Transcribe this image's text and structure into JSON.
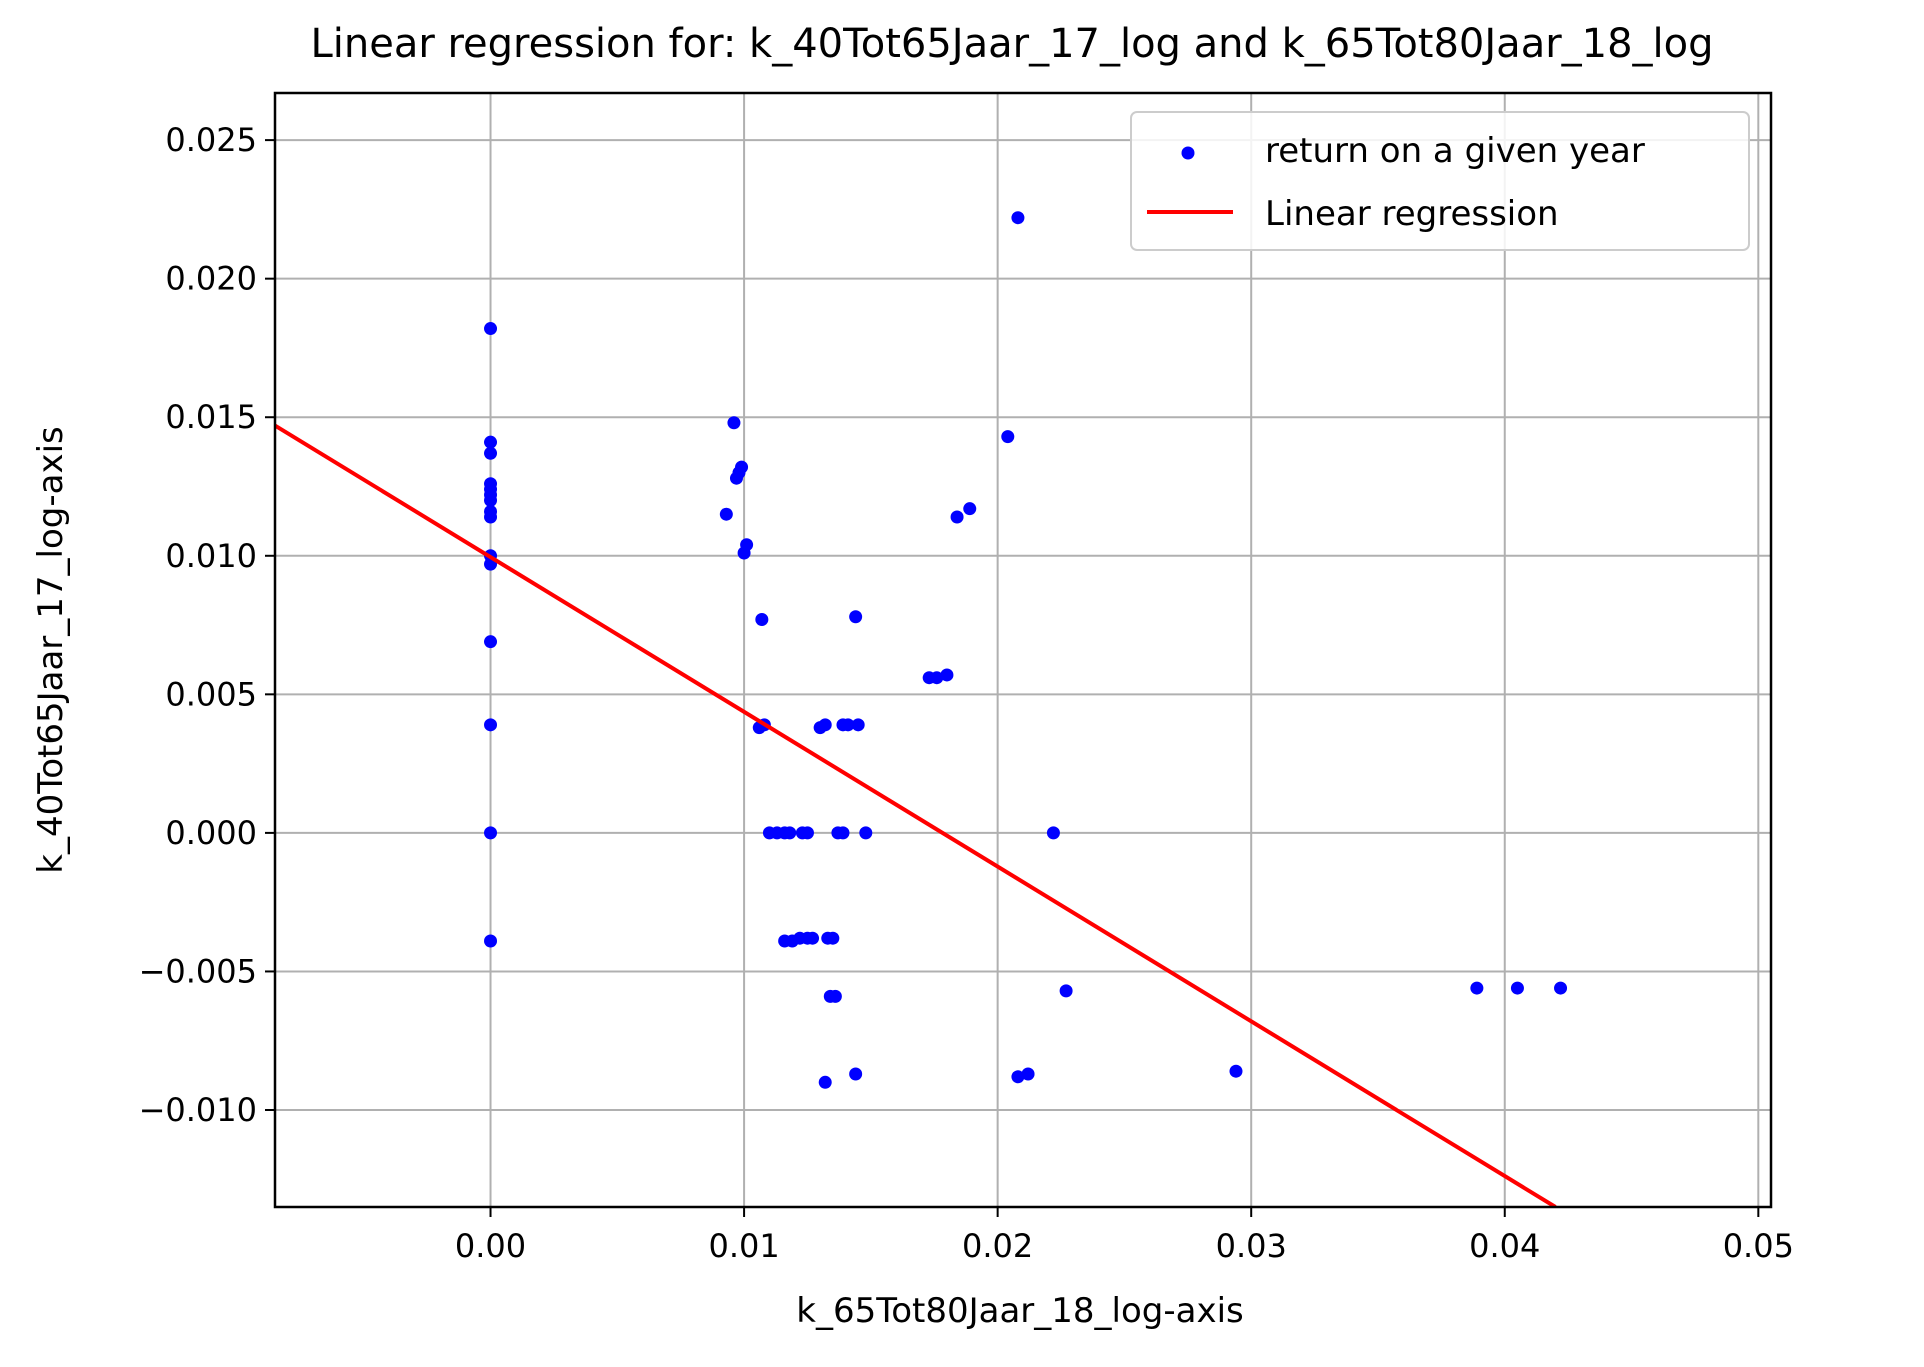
{
  "chart_data": {
    "type": "scatter",
    "title": "Linear regression for: k_40Tot65Jaar_17_log and k_65Tot80Jaar_18_log",
    "xlabel": "k_65Tot80Jaar_18_log-axis",
    "ylabel": "k_40Tot65Jaar_17_log-axis",
    "xlim": [
      -0.0085,
      0.0505
    ],
    "ylim": [
      -0.0135,
      0.0267
    ],
    "grid": true,
    "legend_position": "top-right",
    "x_ticks": [
      0.0,
      0.01,
      0.02,
      0.03,
      0.04,
      0.05
    ],
    "x_tick_labels": [
      "0.00",
      "0.01",
      "0.02",
      "0.03",
      "0.04",
      "0.05"
    ],
    "y_ticks": [
      -0.01,
      -0.005,
      0.0,
      0.005,
      0.01,
      0.015,
      0.02,
      0.025
    ],
    "y_tick_labels": [
      "−0.010",
      "−0.005",
      "0.000",
      "0.005",
      "0.010",
      "0.015",
      "0.020",
      "0.025"
    ],
    "legend": [
      "return on a given year",
      "Linear regression"
    ],
    "colors": {
      "points": "#0000ff",
      "regression": "#ff0000"
    },
    "series": [
      {
        "name": "return on a given year",
        "kind": "scatter",
        "points": [
          [
            0.0,
            0.0182
          ],
          [
            0.0,
            0.0141
          ],
          [
            0.0,
            0.0137
          ],
          [
            0.0,
            0.0126
          ],
          [
            0.0,
            0.0124
          ],
          [
            0.0,
            0.0122
          ],
          [
            0.0,
            0.012
          ],
          [
            0.0,
            0.0116
          ],
          [
            0.0,
            0.0114
          ],
          [
            0.0,
            0.01
          ],
          [
            0.0,
            0.0097
          ],
          [
            0.0,
            0.0069
          ],
          [
            0.0,
            0.0039
          ],
          [
            0.0,
            0.0
          ],
          [
            0.0,
            -0.0039
          ],
          [
            0.0096,
            0.0148
          ],
          [
            0.0097,
            0.0128
          ],
          [
            0.0098,
            0.013
          ],
          [
            0.0099,
            0.0132
          ],
          [
            0.0093,
            0.0115
          ],
          [
            0.01,
            0.0101
          ],
          [
            0.0101,
            0.0104
          ],
          [
            0.0107,
            0.0077
          ],
          [
            0.0144,
            0.0078
          ],
          [
            0.0106,
            0.0038
          ],
          [
            0.0108,
            0.0039
          ],
          [
            0.013,
            0.0038
          ],
          [
            0.0132,
            0.0039
          ],
          [
            0.0139,
            0.0039
          ],
          [
            0.0141,
            0.0039
          ],
          [
            0.0145,
            0.0039
          ],
          [
            0.011,
            0.0
          ],
          [
            0.0113,
            0.0
          ],
          [
            0.0116,
            0.0
          ],
          [
            0.0118,
            0.0
          ],
          [
            0.0123,
            0.0
          ],
          [
            0.0125,
            0.0
          ],
          [
            0.0137,
            0.0
          ],
          [
            0.0139,
            0.0
          ],
          [
            0.0148,
            0.0
          ],
          [
            0.0116,
            -0.0039
          ],
          [
            0.0119,
            -0.0039
          ],
          [
            0.0122,
            -0.0038
          ],
          [
            0.0125,
            -0.0038
          ],
          [
            0.0127,
            -0.0038
          ],
          [
            0.0133,
            -0.0038
          ],
          [
            0.0135,
            -0.0038
          ],
          [
            0.0134,
            -0.0059
          ],
          [
            0.0136,
            -0.0059
          ],
          [
            0.0132,
            -0.009
          ],
          [
            0.0144,
            -0.0087
          ],
          [
            0.0173,
            0.0056
          ],
          [
            0.0176,
            0.0056
          ],
          [
            0.018,
            0.0057
          ],
          [
            0.0184,
            0.0114
          ],
          [
            0.0189,
            0.0117
          ],
          [
            0.0204,
            0.0143
          ],
          [
            0.0208,
            0.0222
          ],
          [
            0.0222,
            0.0
          ],
          [
            0.0227,
            -0.0057
          ],
          [
            0.0208,
            -0.0088
          ],
          [
            0.0212,
            -0.0087
          ],
          [
            0.0294,
            -0.0086
          ],
          [
            0.0389,
            -0.0056
          ],
          [
            0.0405,
            -0.0056
          ],
          [
            0.0422,
            -0.0056
          ]
        ]
      },
      {
        "name": "Linear regression",
        "kind": "line",
        "points": [
          [
            -0.0085,
            0.0147
          ],
          [
            0.042,
            -0.0135
          ]
        ]
      }
    ]
  }
}
